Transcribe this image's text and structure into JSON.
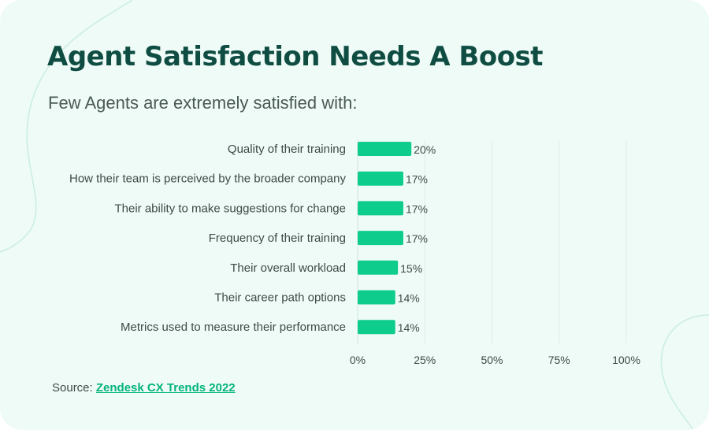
{
  "title": "Agent Satisfaction Needs A Boost",
  "subtitle": "Few Agents are extremely satisfied with:",
  "source": {
    "prefix": "Source:",
    "link_text": "Zendesk CX Trends 2022"
  },
  "colors": {
    "bar": "#0dcc8c",
    "title": "#0f4d43",
    "background": "#effbf6",
    "grid": "#dcefe7",
    "link": "#03b47c"
  },
  "chart_data": {
    "type": "bar",
    "orientation": "horizontal",
    "categories": [
      "Quality of their training",
      "How their team is perceived by the broader company",
      "Their ability to make suggestions for change",
      "Frequency of their training",
      "Their overall workload",
      "Their career path options",
      "Metrics used to measure their performance"
    ],
    "values": [
      20,
      17,
      17,
      17,
      15,
      14,
      14
    ],
    "value_labels": [
      "20%",
      "17%",
      "17%",
      "17%",
      "15%",
      "14%",
      "14%"
    ],
    "xticks": [
      0,
      25,
      50,
      75,
      100
    ],
    "xtick_labels": [
      "0%",
      "25%",
      "50%",
      "75%",
      "100%"
    ],
    "xlim": [
      0,
      100
    ],
    "grid": true,
    "legend": "none"
  }
}
